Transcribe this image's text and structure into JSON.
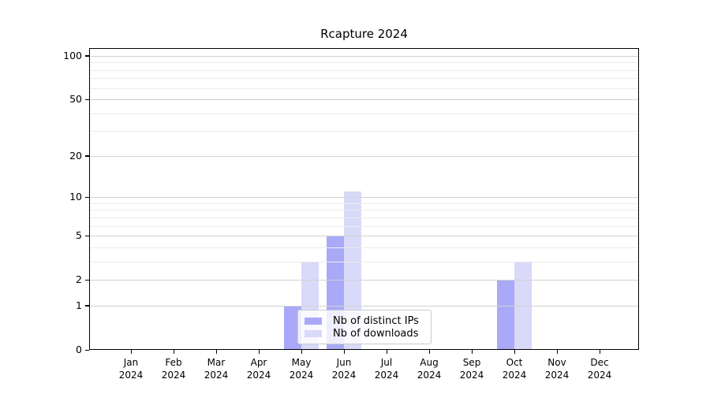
{
  "chart_data": {
    "type": "bar",
    "title": "Rcapture 2024",
    "categories": [
      "Jan 2024",
      "Feb 2024",
      "Mar 2024",
      "Apr 2024",
      "May 2024",
      "Jun 2024",
      "Jul 2024",
      "Aug 2024",
      "Sep 2024",
      "Oct 2024",
      "Nov 2024",
      "Dec 2024"
    ],
    "series": [
      {
        "name": "Nb of distinct IPs",
        "color": "#a9a9f8",
        "values": [
          0,
          0,
          0,
          0,
          1,
          5,
          0,
          0,
          0,
          2,
          0,
          0
        ]
      },
      {
        "name": "Nb of downloads",
        "color": "#d9d9fa",
        "values": [
          0,
          0,
          0,
          0,
          3,
          11,
          0,
          0,
          0,
          3,
          0,
          0
        ]
      }
    ],
    "xlabel": "",
    "ylabel": "",
    "yscale": "log1p",
    "ylim": [
      0,
      113
    ],
    "yticks": [
      0,
      1,
      2,
      5,
      10,
      20,
      50,
      100
    ],
    "minor_gridlines": [
      3,
      4,
      6,
      7,
      8,
      9,
      30,
      40,
      60,
      70,
      80,
      90
    ],
    "grid": true,
    "grid_major_color": "#d2d2d2",
    "grid_minor_color": "#ececec",
    "legend_position": "lower center"
  }
}
